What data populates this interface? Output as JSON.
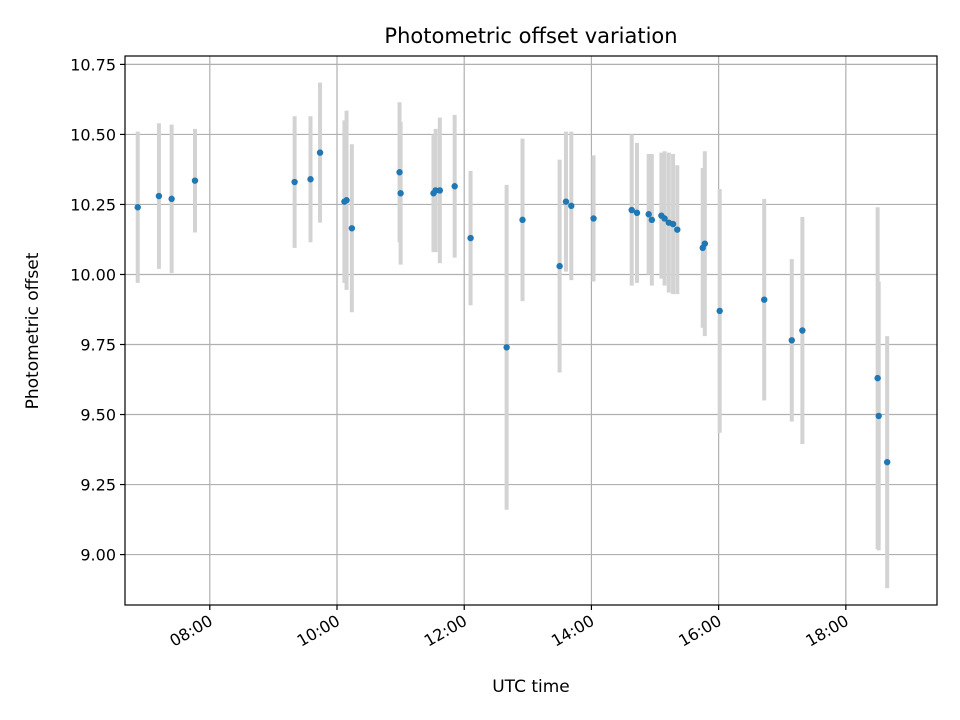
{
  "chart_data": {
    "type": "scatter",
    "title": "Photometric offset variation",
    "xlabel": "UTC time",
    "ylabel": "Photometric offset",
    "grid": true,
    "xlim": [
      "06:40",
      "19:26"
    ],
    "ylim": [
      8.82,
      10.78
    ],
    "x_ticks": [
      "08:00",
      "10:00",
      "12:00",
      "14:00",
      "16:00",
      "18:00"
    ],
    "y_ticks": [
      "9.00",
      "9.25",
      "9.50",
      "9.75",
      "10.00",
      "10.25",
      "10.50",
      "10.75"
    ],
    "colors": {
      "marker": "#1f77b4",
      "errorbar": "#d3d3d3"
    },
    "series": [
      {
        "x": [
          "06:52",
          "07:12",
          "07:24",
          "07:46",
          "09:20",
          "09:35",
          "09:44",
          "10:07",
          "10:09",
          "10:14",
          "10:59",
          "11:00",
          "11:31",
          "11:33",
          "11:37",
          "11:51",
          "12:06",
          "12:40",
          "12:55",
          "13:30",
          "13:36",
          "13:41",
          "14:02",
          "14:38",
          "14:43",
          "14:54",
          "14:57",
          "15:06",
          "15:09",
          "15:13",
          "15:17",
          "15:21",
          "15:45",
          "15:47",
          "16:01",
          "16:43",
          "17:09",
          "17:19",
          "18:30",
          "18:31",
          "18:39"
        ],
        "y": [
          10.24,
          10.28,
          10.27,
          10.335,
          10.33,
          10.34,
          10.435,
          10.26,
          10.265,
          10.165,
          10.365,
          10.29,
          10.29,
          10.3,
          10.3,
          10.315,
          10.13,
          9.74,
          10.195,
          10.03,
          10.26,
          10.245,
          10.2,
          10.23,
          10.22,
          10.215,
          10.195,
          10.21,
          10.2,
          10.185,
          10.18,
          10.16,
          10.095,
          10.11,
          9.87,
          9.91,
          9.765,
          9.8,
          9.63,
          9.495,
          9.33
        ],
        "yerr": [
          0.27,
          0.26,
          0.265,
          0.185,
          0.235,
          0.225,
          0.25,
          0.29,
          0.32,
          0.3,
          0.25,
          0.255,
          0.21,
          0.22,
          0.26,
          0.255,
          0.24,
          0.58,
          0.29,
          0.38,
          0.25,
          0.265,
          0.225,
          0.27,
          0.25,
          0.215,
          0.235,
          0.225,
          0.24,
          0.25,
          0.25,
          0.23,
          0.285,
          0.33,
          0.435,
          0.36,
          0.29,
          0.405,
          0.61,
          0.48,
          0.45
        ]
      }
    ]
  }
}
